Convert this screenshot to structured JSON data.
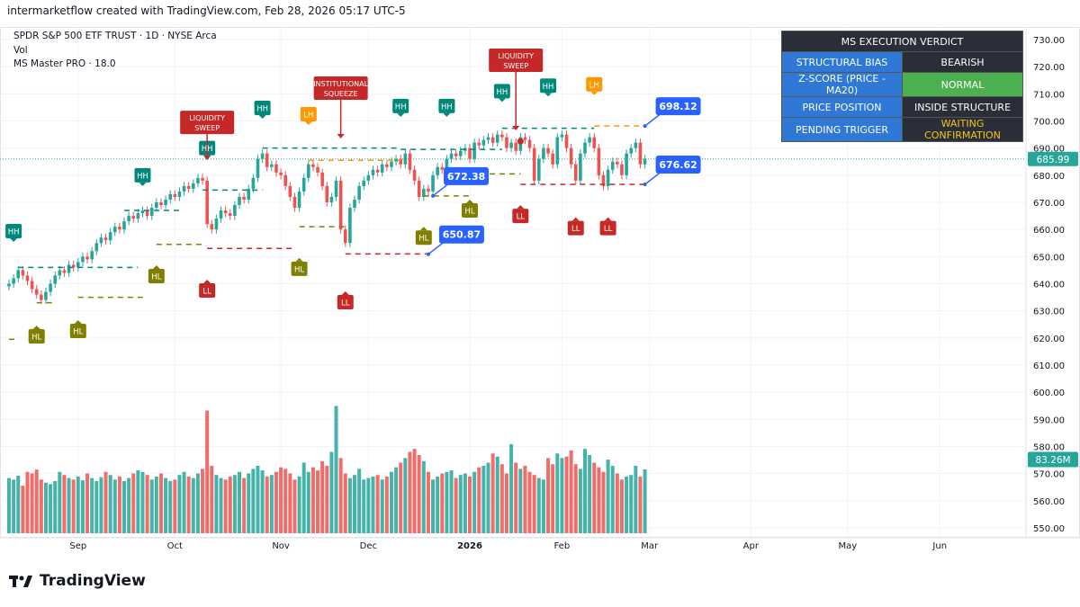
{
  "header": {
    "credit": "intermarketflow created with TradingView.com, Feb 28, 2026 05:17 UTC-5"
  },
  "legend": {
    "symbol": "SPDR S&P 500 ETF TRUST · 1D · NYSE Arca",
    "volume": "Vol",
    "indicator": "MS Master PRO · 18.0"
  },
  "verdict": {
    "title": "MS EXECUTION VERDICT",
    "rows": [
      {
        "key": "STRUCTURAL BIAS",
        "value": "BEARISH",
        "color": "#2a2e39",
        "text": "#ffffff"
      },
      {
        "key": "Z-SCORE (PRICE - MA20)",
        "value": "NORMAL",
        "color": "#4caf50",
        "text": "#ffffff"
      },
      {
        "key": "PRICE POSITION",
        "value": "INSIDE STRUCTURE",
        "color": "#2a2e39",
        "text": "#ffffff"
      },
      {
        "key": "PENDING TRIGGER",
        "value": "WAITING CONFIRMATION",
        "color": "#2a2e39",
        "text": "#f5c518"
      }
    ]
  },
  "logo": {
    "text": "TradingView"
  },
  "chart_data": {
    "type": "candlestick",
    "ylim": [
      550,
      730
    ],
    "y_ticks": [
      730,
      720,
      710,
      700,
      690,
      680,
      670,
      660,
      650,
      640,
      630,
      620,
      610,
      600,
      590,
      580,
      570,
      560,
      550
    ],
    "x_ticks": [
      {
        "label": "Sep",
        "index": 15
      },
      {
        "label": "Oct",
        "index": 36
      },
      {
        "label": "Nov",
        "index": 59
      },
      {
        "label": "Dec",
        "index": 78
      },
      {
        "label": "2026",
        "index": 100
      },
      {
        "label": "Feb",
        "index": 120
      },
      {
        "label": "Mar",
        "index": 139
      },
      {
        "label": "Apr",
        "index": 161
      },
      {
        "label": "May",
        "index": 182
      },
      {
        "label": "Jun",
        "index": 202
      }
    ],
    "last_price": "685.99",
    "last_volume": "83.26M",
    "colors": {
      "up": "#26a69a",
      "down": "#ef5350",
      "HH": "#00897b",
      "HL": "#808000",
      "LL": "#c62828",
      "LH": "#ff9800",
      "event": "#c62828",
      "callout": "#2962ff"
    },
    "close": [
      640,
      642,
      645,
      643,
      641,
      638,
      636,
      634,
      637,
      640,
      643,
      645,
      644,
      647,
      646,
      648,
      650,
      649,
      652,
      655,
      657,
      656,
      659,
      661,
      660,
      663,
      665,
      664,
      666,
      667,
      665,
      668,
      670,
      669,
      671,
      673,
      672,
      674,
      676,
      675,
      677,
      679,
      678,
      662,
      660,
      664,
      667,
      666,
      665,
      669,
      672,
      671,
      675,
      679,
      686,
      688,
      683,
      684,
      681,
      680,
      676,
      672,
      668,
      674,
      679,
      684,
      683,
      681,
      676,
      670,
      672,
      678,
      660,
      655,
      668,
      671,
      676,
      678,
      680,
      682,
      681,
      684,
      683,
      685,
      686,
      684,
      688,
      682,
      678,
      672,
      675,
      674,
      680,
      683,
      682,
      686,
      688,
      687,
      689,
      690,
      686,
      692,
      691,
      693,
      694,
      692,
      695,
      694,
      690,
      692,
      689,
      694,
      693,
      690,
      678,
      686,
      690,
      688,
      684,
      694,
      695,
      690,
      684,
      678,
      688,
      692,
      694,
      690,
      680,
      676,
      682,
      685,
      684,
      680,
      688,
      690,
      692,
      684,
      686
    ],
    "volume_millions": [
      72,
      70,
      75,
      62,
      80,
      78,
      83,
      70,
      66,
      64,
      68,
      80,
      76,
      72,
      70,
      74,
      69,
      78,
      72,
      68,
      73,
      80,
      76,
      70,
      74,
      68,
      72,
      78,
      82,
      80,
      76,
      70,
      74,
      78,
      72,
      68,
      70,
      76,
      80,
      74,
      72,
      78,
      84,
      160,
      88,
      76,
      72,
      70,
      74,
      76,
      80,
      72,
      78,
      84,
      88,
      82,
      74,
      76,
      80,
      86,
      84,
      78,
      70,
      74,
      92,
      80,
      86,
      82,
      94,
      88,
      106,
      166,
      98,
      78,
      72,
      76,
      84,
      70,
      72,
      74,
      76,
      70,
      74,
      80,
      86,
      92,
      98,
      106,
      110,
      102,
      94,
      80,
      70,
      74,
      78,
      80,
      82,
      72,
      76,
      78,
      74,
      80,
      86,
      88,
      92,
      104,
      100,
      90,
      78,
      116,
      92,
      84,
      88,
      80,
      76,
      72,
      70,
      98,
      90,
      104,
      98,
      100,
      108,
      90,
      84,
      110,
      102,
      92,
      86,
      80,
      96,
      88,
      78,
      70,
      74,
      76,
      88,
      74,
      83.26
    ],
    "markers": [
      {
        "label": "HH",
        "type": "HH",
        "index": 1,
        "price": 659.4
      },
      {
        "label": "HL",
        "type": "HL",
        "index": 6,
        "price": 620.6
      },
      {
        "label": "HL",
        "type": "HL",
        "index": 15,
        "price": 622.6
      },
      {
        "label": "HH",
        "type": "HH",
        "index": 29,
        "price": 680
      },
      {
        "label": "HL",
        "type": "HL",
        "index": 32,
        "price": 642.8
      },
      {
        "label": "LIQUIDITY SWEEP",
        "type": "event",
        "index": 43,
        "price": 691.5
      },
      {
        "label": "HH",
        "type": "HH",
        "index": 43,
        "price": 690
      },
      {
        "label": "LL",
        "type": "LL",
        "index": 43,
        "price": 637.5
      },
      {
        "label": "HH",
        "type": "HH",
        "index": 55,
        "price": 704.8
      },
      {
        "label": "LH",
        "type": "LH",
        "index": 65,
        "price": 702.5
      },
      {
        "label": "HL",
        "type": "HL",
        "index": 63,
        "price": 645.5
      },
      {
        "label": "INSTITUTIONAL SQUEEZE",
        "type": "event",
        "index": 72,
        "price": 699.5
      },
      {
        "label": "LL",
        "type": "LL",
        "index": 73,
        "price": 633.2
      },
      {
        "label": "HH",
        "type": "HH",
        "index": 85,
        "price": 705.5
      },
      {
        "label": "HL",
        "type": "HL",
        "index": 90,
        "price": 657
      },
      {
        "label": "HH",
        "type": "HH",
        "index": 95,
        "price": 705.5
      },
      {
        "label": "HL",
        "type": "HL",
        "index": 100,
        "price": 667
      },
      {
        "label": "HH",
        "type": "HH",
        "index": 107,
        "price": 711
      },
      {
        "label": "LIQUIDITY SWEEP",
        "type": "event",
        "index": 110,
        "price": 702.5
      },
      {
        "label": "LL",
        "type": "LL",
        "index": 111,
        "price": 665
      },
      {
        "label": "HH",
        "type": "HH",
        "index": 117,
        "price": 713
      },
      {
        "label": "LH",
        "type": "LH",
        "index": 127,
        "price": 713.5
      },
      {
        "label": "LL",
        "type": "LL",
        "index": 123,
        "price": 660.5
      },
      {
        "label": "LL",
        "type": "LL",
        "index": 130,
        "price": 660.5
      }
    ],
    "callouts": [
      {
        "label": "698.12",
        "index": 138,
        "price": 698.12
      },
      {
        "label": "676.62",
        "index": 138,
        "price": 676.62
      },
      {
        "label": "672.38",
        "index": 92,
        "price": 672.38
      },
      {
        "label": "650.87",
        "index": 91,
        "price": 650.87
      }
    ],
    "levels": [
      {
        "price": 619.5,
        "from": 0,
        "to": 2,
        "type": "HL"
      },
      {
        "price": 646,
        "from": 2,
        "to": 28,
        "type": "HH"
      },
      {
        "price": 635,
        "from": 15,
        "to": 30,
        "type": "HL"
      },
      {
        "price": 633,
        "from": 6,
        "to": 10,
        "type": "HL"
      },
      {
        "price": 667,
        "from": 25,
        "to": 37,
        "type": "HH"
      },
      {
        "price": 654.5,
        "from": 32,
        "to": 42,
        "type": "HL"
      },
      {
        "price": 674.5,
        "from": 42,
        "to": 55,
        "type": "HH"
      },
      {
        "price": 653,
        "from": 43,
        "to": 62,
        "type": "LL"
      },
      {
        "price": 690,
        "from": 55,
        "to": 85,
        "type": "HH"
      },
      {
        "price": 685.5,
        "from": 65,
        "to": 85,
        "type": "LH"
      },
      {
        "price": 661,
        "from": 63,
        "to": 73,
        "type": "HL"
      },
      {
        "price": 651,
        "from": 73,
        "to": 91,
        "type": "LL"
      },
      {
        "price": 689.5,
        "from": 85,
        "to": 107,
        "type": "HH"
      },
      {
        "price": 672.38,
        "from": 90,
        "to": 100,
        "type": "HL"
      },
      {
        "price": 680.5,
        "from": 100,
        "to": 111,
        "type": "HL"
      },
      {
        "price": 697.3,
        "from": 107,
        "to": 127,
        "type": "HH"
      },
      {
        "price": 698.12,
        "from": 127,
        "to": 138,
        "type": "LH"
      },
      {
        "price": 676.62,
        "from": 111,
        "to": 138,
        "type": "LL"
      }
    ],
    "sweep_points": [
      {
        "index": 111,
        "price": 692.5
      }
    ]
  }
}
